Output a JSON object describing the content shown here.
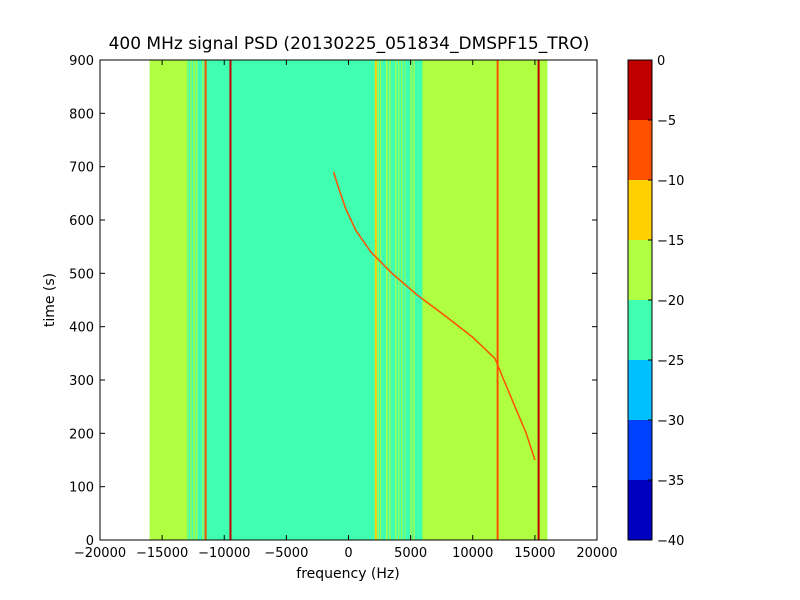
{
  "chart_data": {
    "type": "heatmap",
    "title": "400 MHz signal PSD (20130225_051834_DMSPF15_TRO)",
    "xlabel": "frequency (Hz)",
    "ylabel": "time (s)",
    "xlim": [
      -20000,
      20000
    ],
    "ylim": [
      0,
      900
    ],
    "x_ticks": [
      -20000,
      -15000,
      -10000,
      -5000,
      0,
      5000,
      10000,
      15000,
      20000
    ],
    "y_ticks": [
      0,
      100,
      200,
      300,
      400,
      500,
      600,
      700,
      800,
      900
    ],
    "x_tick_labels": [
      "−20000",
      "−15000",
      "−10000",
      "−5000",
      "0",
      "5000",
      "10000",
      "15000",
      "20000"
    ],
    "y_tick_labels": [
      "0",
      "100",
      "200",
      "300",
      "400",
      "500",
      "600",
      "700",
      "800",
      "900"
    ],
    "data_extent_x": [
      -16000,
      16000
    ],
    "background_level": -22.5,
    "bands": [
      {
        "x0": -16000,
        "x1": -13000,
        "level": -17.5
      },
      {
        "x0": 6000,
        "x1": 16000,
        "level": -17.5
      }
    ],
    "noise_columns": [
      {
        "x0": -13000,
        "x1": -11500,
        "level": -17.5
      },
      {
        "x0": 2300,
        "x1": 6000,
        "level": -17.5
      }
    ],
    "constant_lines": [
      {
        "x": -11500,
        "level": -7.5
      },
      {
        "x": -9500,
        "level": -2.5
      },
      {
        "x": 2200,
        "level": -12.5
      },
      {
        "x": 12000,
        "level": -7.5
      },
      {
        "x": 15300,
        "level": -2.5
      }
    ],
    "signal_trace": {
      "level": -5,
      "t": [
        150,
        200,
        250,
        300,
        340,
        380,
        420,
        460,
        500,
        540,
        580,
        620,
        660,
        690
      ],
      "f": [
        15000,
        14300,
        13400,
        12500,
        11800,
        10000,
        7800,
        5500,
        3500,
        1800,
        600,
        -200,
        -800,
        -1200
      ]
    },
    "colorbar": {
      "colormap": "jet",
      "levels": [
        -40,
        -35,
        -30,
        -25,
        -20,
        -15,
        -10,
        -5,
        0
      ],
      "tick_labels": [
        "−40",
        "−35",
        "−30",
        "−25",
        "−20",
        "−15",
        "−10",
        "−5",
        "0"
      ],
      "colors": [
        "#0000c0",
        "#0040ff",
        "#00c0ff",
        "#40ffb0",
        "#b0ff40",
        "#ffd000",
        "#ff5000",
        "#c00000"
      ]
    }
  }
}
